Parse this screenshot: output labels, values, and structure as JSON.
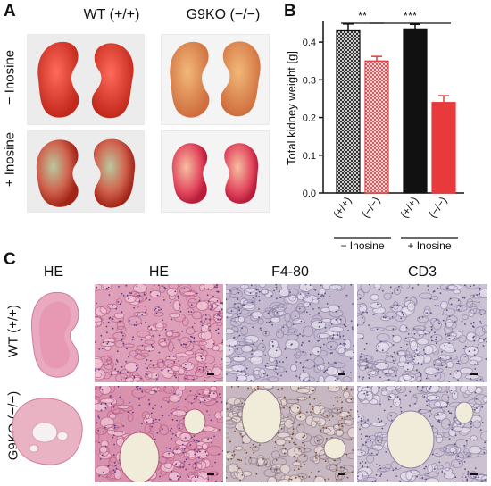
{
  "panels": {
    "a": {
      "letter": "A",
      "col_wt": "WT (+/+)",
      "col_ko": "G9KO (−/−)",
      "row_minus": "− Inosine",
      "row_plus": "+ Inosine"
    },
    "b": {
      "letter": "B"
    },
    "c": {
      "letter": "C",
      "col_he_small": "HE",
      "col_he": "HE",
      "col_f480": "F4-80",
      "col_cd3": "CD3",
      "row_wt": "WT (+/+)",
      "row_ko": "G9KO (−/−)"
    }
  },
  "colors": {
    "wt_bar": "#111111",
    "ko_bar": "#e8393c",
    "he_stain": "#d77fa0",
    "ihc_stain": "#b6a7c2"
  },
  "chart_data": {
    "type": "bar",
    "ylabel": "Total kidney weight [g]",
    "ylim": [
      0,
      0.45
    ],
    "yticks": [
      "0.0",
      "0.1",
      "0.2",
      "0.3",
      "0.4"
    ],
    "categories": [
      "(+/+)",
      "(−/−)",
      "(+/+)",
      "(−/−)"
    ],
    "groups": [
      "− Inosine",
      "+ Inosine"
    ],
    "values": [
      0.43,
      0.35,
      0.435,
      0.24
    ],
    "errors": [
      0.018,
      0.012,
      0.012,
      0.018
    ],
    "fills": [
      "hatch-black",
      "hatch-red",
      "solid-black",
      "solid-red"
    ],
    "significance": [
      {
        "from": 0,
        "to": 1,
        "label": "**"
      },
      {
        "from": 1,
        "to": 3,
        "label": "***"
      }
    ]
  }
}
